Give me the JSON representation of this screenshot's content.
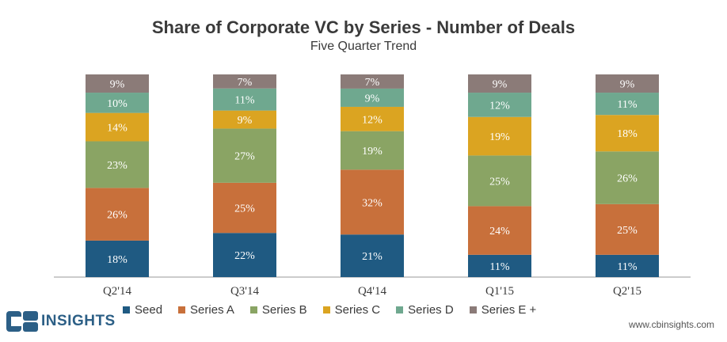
{
  "title": "Share of Corporate VC by Series - Number of Deals",
  "subtitle": "Five Quarter Trend",
  "chart_data": {
    "type": "bar",
    "stacked": true,
    "categories": [
      "Q2'14",
      "Q3'14",
      "Q4'14",
      "Q1'15",
      "Q2'15"
    ],
    "series": [
      {
        "name": "Seed",
        "color": "#1f5a82",
        "values": [
          18,
          22,
          21,
          11,
          11
        ]
      },
      {
        "name": "Series A",
        "color": "#c8703b",
        "values": [
          26,
          25,
          32,
          24,
          25
        ]
      },
      {
        "name": "Series B",
        "color": "#8aa464",
        "values": [
          23,
          27,
          19,
          25,
          26
        ]
      },
      {
        "name": "Series C",
        "color": "#dba421",
        "values": [
          14,
          9,
          12,
          19,
          18
        ]
      },
      {
        "name": "Series D",
        "color": "#6fa88f",
        "values": [
          10,
          11,
          9,
          12,
          11
        ]
      },
      {
        "name": "Series E +",
        "color": "#8b7b78",
        "values": [
          9,
          7,
          7,
          9,
          9
        ]
      }
    ],
    "value_suffix": "%",
    "legend_position": "bottom"
  },
  "legend": [
    {
      "label": "Seed",
      "color": "#1f5a82"
    },
    {
      "label": "Series A",
      "color": "#c8703b"
    },
    {
      "label": "Series B",
      "color": "#8aa464"
    },
    {
      "label": "Series C",
      "color": "#dba421"
    },
    {
      "label": "Series D",
      "color": "#6fa88f"
    },
    {
      "label": "Series E +",
      "color": "#8b7b78"
    }
  ],
  "logo": {
    "text": "INSIGHTS",
    "mark": "CB"
  },
  "url": "www.cbinsights.com"
}
